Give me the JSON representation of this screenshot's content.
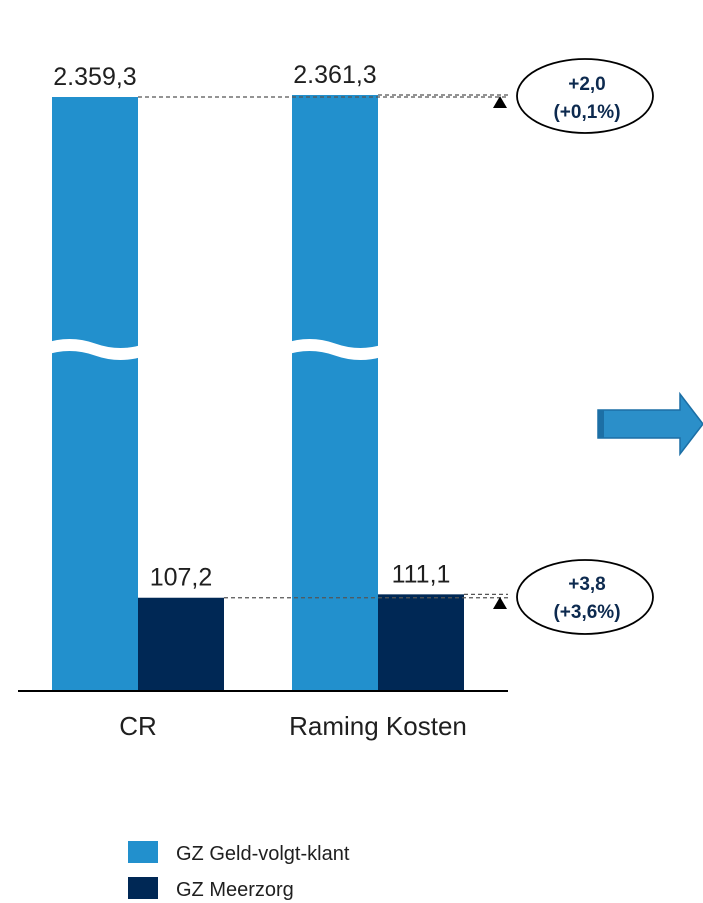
{
  "chart_data": {
    "type": "bar",
    "categories": [
      "CR",
      "Raming Kosten"
    ],
    "series": [
      {
        "name": "GZ Geld-volgt-klant",
        "values": [
          2359.3,
          2361.3
        ],
        "labels": [
          "2.359,3",
          "2.361,3"
        ],
        "color": "#2290cd"
      },
      {
        "name": "GZ Meerzorg",
        "values": [
          107.2,
          111.1
        ],
        "labels": [
          "107,2",
          "111,1"
        ],
        "color": "#002855"
      }
    ],
    "axis_break": true,
    "annotations": [
      {
        "series": "GZ Geld-volgt-klant",
        "line1": "+2,0",
        "line2": "(+0,1%)"
      },
      {
        "series": "GZ Meerzorg",
        "line1": "+3,8",
        "line2": "(+3,6%)"
      }
    ],
    "legend_position": "bottom-left",
    "title": "",
    "xlabel": "",
    "ylabel": ""
  },
  "arrow_icon": "right-arrow-icon",
  "colors": {
    "arrow": "#2b8fc9",
    "bubble_text": "#0d2a4f"
  }
}
